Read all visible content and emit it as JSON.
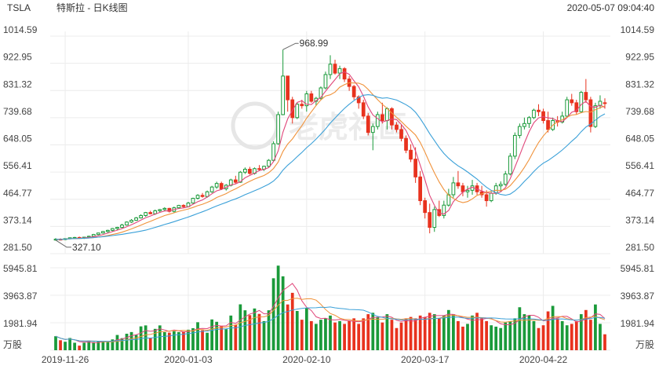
{
  "header": {
    "symbol": "TSLA",
    "title": "特斯拉 - 日K线图",
    "timestamp": "2020-05-07 09:04:40"
  },
  "watermark": "老虎社區",
  "chart_data": {
    "type": "candlestick",
    "price_ticks": [
      "1014.59",
      "922.95",
      "831.32",
      "739.68",
      "648.05",
      "556.41",
      "464.77",
      "373.14",
      "281.50"
    ],
    "price_range": [
      281.5,
      1014.59
    ],
    "volume_ticks": [
      "5945.81",
      "3963.87",
      "1981.94"
    ],
    "volume_unit": "万股",
    "volume_max": 5945.81,
    "x_labels": [
      "2019-11-26",
      "2020-01-03",
      "2020-02-10",
      "2020-03-17",
      "2020-04-22"
    ],
    "annotations": [
      {
        "text": "968.99",
        "date": "2020-02-04",
        "value": 968.99
      },
      {
        "text": "327.10",
        "date": "2019-11-22",
        "value": 327.1
      }
    ],
    "colors": {
      "up": "#1a9a3a",
      "down": "#e8321e",
      "ma5": "#e0467a",
      "ma10": "#f0923a",
      "ma20": "#3aa0d8",
      "vol_line_a": "#e0467a",
      "vol_line_b": "#f0923a",
      "vol_line_c": "#3aa0d8"
    },
    "ohlc": [
      [
        328,
        334,
        325,
        330
      ],
      [
        330,
        333,
        326,
        329
      ],
      [
        329,
        333,
        327,
        332
      ],
      [
        332,
        336,
        330,
        335
      ],
      [
        335,
        338,
        333,
        336
      ],
      [
        336,
        339,
        332,
        334
      ],
      [
        334,
        338,
        331,
        337
      ],
      [
        337,
        342,
        335,
        340
      ],
      [
        340,
        348,
        338,
        346
      ],
      [
        346,
        352,
        344,
        351
      ],
      [
        351,
        358,
        349,
        356
      ],
      [
        356,
        362,
        352,
        360
      ],
      [
        360,
        368,
        357,
        366
      ],
      [
        366,
        372,
        362,
        370
      ],
      [
        370,
        382,
        368,
        378
      ],
      [
        378,
        390,
        376,
        388
      ],
      [
        388,
        398,
        385,
        394
      ],
      [
        394,
        405,
        392,
        402
      ],
      [
        402,
        414,
        400,
        410
      ],
      [
        410,
        422,
        406,
        420
      ],
      [
        420,
        426,
        414,
        416
      ],
      [
        416,
        430,
        412,
        426
      ],
      [
        426,
        432,
        420,
        430
      ],
      [
        430,
        438,
        426,
        434
      ],
      [
        434,
        436,
        420,
        424
      ],
      [
        424,
        440,
        420,
        436
      ],
      [
        436,
        446,
        432,
        444
      ],
      [
        444,
        448,
        436,
        440
      ],
      [
        440,
        456,
        438,
        452
      ],
      [
        452,
        470,
        450,
        468
      ],
      [
        468,
        482,
        464,
        478
      ],
      [
        478,
        486,
        470,
        474
      ],
      [
        474,
        494,
        470,
        490
      ],
      [
        490,
        510,
        486,
        506
      ],
      [
        506,
        524,
        500,
        518
      ],
      [
        518,
        524,
        496,
        500
      ],
      [
        500,
        516,
        494,
        512
      ],
      [
        512,
        534,
        508,
        530
      ],
      [
        530,
        544,
        518,
        522
      ],
      [
        522,
        560,
        520,
        556
      ],
      [
        556,
        572,
        550,
        566
      ],
      [
        566,
        574,
        548,
        552
      ],
      [
        552,
        572,
        548,
        568
      ],
      [
        568,
        580,
        560,
        566
      ],
      [
        566,
        578,
        560,
        576
      ],
      [
        576,
        600,
        572,
        596
      ],
      [
        596,
        660,
        592,
        652
      ],
      [
        652,
        760,
        648,
        750
      ],
      [
        750,
        969,
        748,
        880
      ],
      [
        880,
        880,
        760,
        800
      ],
      [
        800,
        810,
        720,
        740
      ],
      [
        740,
        790,
        735,
        785
      ],
      [
        785,
        800,
        770,
        780
      ],
      [
        780,
        830,
        760,
        820
      ],
      [
        820,
        830,
        790,
        795
      ],
      [
        795,
        810,
        780,
        805
      ],
      [
        805,
        845,
        800,
        840
      ],
      [
        840,
        895,
        835,
        885
      ],
      [
        885,
        950,
        870,
        920
      ],
      [
        920,
        935,
        885,
        890
      ],
      [
        890,
        915,
        870,
        905
      ],
      [
        905,
        910,
        860,
        870
      ],
      [
        870,
        880,
        830,
        845
      ],
      [
        845,
        850,
        800,
        810
      ],
      [
        810,
        815,
        770,
        790
      ],
      [
        790,
        800,
        735,
        745
      ],
      [
        745,
        755,
        680,
        690
      ],
      [
        690,
        720,
        630,
        710
      ],
      [
        710,
        760,
        700,
        750
      ],
      [
        750,
        790,
        720,
        730
      ],
      [
        730,
        775,
        700,
        770
      ],
      [
        770,
        775,
        700,
        715
      ],
      [
        715,
        725,
        690,
        700
      ],
      [
        700,
        715,
        660,
        670
      ],
      [
        670,
        680,
        620,
        630
      ],
      [
        630,
        650,
        590,
        600
      ],
      [
        600,
        640,
        520,
        540
      ],
      [
        540,
        560,
        445,
        460
      ],
      [
        460,
        470,
        400,
        420
      ],
      [
        420,
        450,
        350,
        370
      ],
      [
        370,
        440,
        355,
        430
      ],
      [
        430,
        460,
        405,
        410
      ],
      [
        410,
        460,
        400,
        445
      ],
      [
        445,
        500,
        440,
        480
      ],
      [
        480,
        540,
        470,
        520
      ],
      [
        520,
        560,
        500,
        510
      ],
      [
        510,
        520,
        475,
        490
      ],
      [
        490,
        510,
        470,
        495
      ],
      [
        495,
        530,
        480,
        510
      ],
      [
        510,
        520,
        480,
        490
      ],
      [
        490,
        510,
        470,
        480
      ],
      [
        480,
        495,
        440,
        460
      ],
      [
        460,
        490,
        455,
        485
      ],
      [
        485,
        520,
        480,
        510
      ],
      [
        510,
        525,
        490,
        515
      ],
      [
        515,
        560,
        510,
        550
      ],
      [
        550,
        620,
        545,
        610
      ],
      [
        610,
        690,
        600,
        680
      ],
      [
        680,
        720,
        670,
        710
      ],
      [
        710,
        740,
        700,
        720
      ],
      [
        720,
        745,
        705,
        740
      ],
      [
        740,
        770,
        735,
        765
      ],
      [
        765,
        785,
        745,
        760
      ],
      [
        760,
        770,
        720,
        730
      ],
      [
        730,
        760,
        690,
        700
      ],
      [
        700,
        740,
        695,
        730
      ],
      [
        730,
        745,
        710,
        725
      ],
      [
        725,
        760,
        720,
        745
      ],
      [
        745,
        810,
        740,
        800
      ],
      [
        800,
        820,
        780,
        790
      ],
      [
        790,
        800,
        750,
        760
      ],
      [
        760,
        830,
        755,
        825
      ],
      [
        825,
        870,
        790,
        800
      ],
      [
        800,
        810,
        690,
        710
      ],
      [
        710,
        790,
        705,
        780
      ],
      [
        780,
        815,
        770,
        795
      ],
      [
        790,
        805,
        770,
        788
      ]
    ],
    "volume": [
      1010,
      720,
      610,
      880,
      540,
      330,
      540,
      690,
      590,
      620,
      610,
      620,
      780,
      1100,
      870,
      1190,
      1310,
      1100,
      1720,
      1790,
      890,
      1540,
      1790,
      1300,
      1270,
      1370,
      1310,
      1340,
      1480,
      1590,
      2020,
      1440,
      1260,
      2220,
      2050,
      1760,
      1520,
      2500,
      1820,
      3310,
      2880,
      2530,
      3010,
      2620,
      2100,
      2880,
      5190,
      6100,
      5330,
      3300,
      4140,
      2830,
      2200,
      3030,
      2100,
      1900,
      2200,
      2300,
      2500,
      2000,
      2100,
      1900,
      2100,
      2300,
      1900,
      2300,
      2600,
      2700,
      2400,
      2000,
      2600,
      2200,
      1600,
      2000,
      2300,
      2400,
      2300,
      2500,
      2400,
      2700,
      2600,
      2300,
      2500,
      2900,
      2600,
      2100,
      1700,
      1900,
      2500,
      2700,
      2300,
      2100,
      1800,
      1700,
      1600,
      2000,
      2100,
      2300,
      3100,
      2600,
      2500,
      2100,
      1600,
      1800,
      2800,
      3200,
      2300,
      2100,
      1800,
      1900,
      2100,
      2600,
      2900,
      2200,
      3300,
      1900,
      1150
    ]
  }
}
